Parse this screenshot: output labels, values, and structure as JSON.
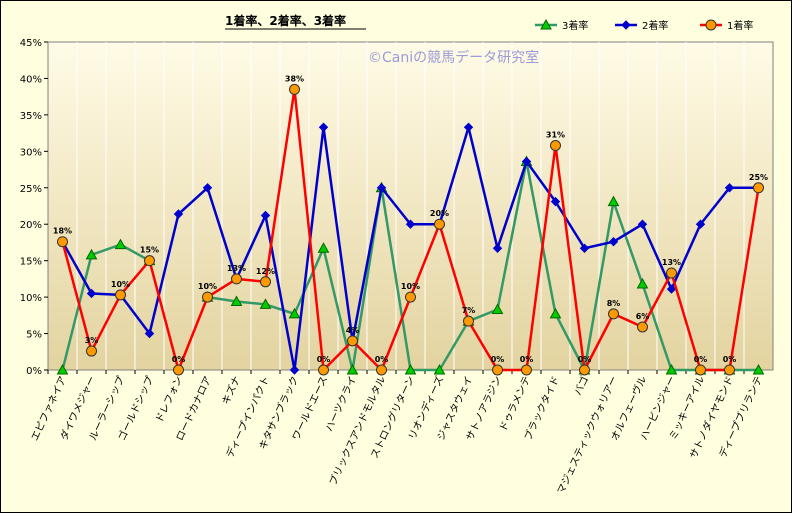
{
  "chart_data": {
    "type": "line",
    "title": "1着率、2着率、3着率",
    "watermark": "©Caniの競馬データ研究室",
    "ylim": [
      0,
      45
    ],
    "y_ticks": [
      "0%",
      "5%",
      "10%",
      "15%",
      "20%",
      "25%",
      "30%",
      "35%",
      "40%",
      "45%"
    ],
    "grid": "vertical",
    "legend_position": "top-right",
    "categories": [
      "エピファネイア",
      "ダイワメジャー",
      "ルーラーシップ",
      "ゴールドシップ",
      "ドレフォン",
      "ロードカナロア",
      "キズナ",
      "ディープインパクト",
      "キタサンブラック",
      "ワールドエース",
      "ハーツクライ",
      "ブリックスアンドモルタル",
      "ストロングリターン",
      "リオンディーズ",
      "ジャスタウェイ",
      "サトノアラジン",
      "ドゥラメンテ",
      "ブラックタイド",
      "バゴ",
      "マジェスティックウォリアー",
      "オルフェーヴル",
      "ハービンジャー",
      "ミッキーアイル",
      "サトノダイヤモンド",
      "ディープブリランテ"
    ],
    "series": [
      {
        "name": "3着率",
        "color": "#339966",
        "marker": "triangle",
        "marker_fill": "#00cc00",
        "values": [
          0,
          15.8,
          17.2,
          15,
          null,
          10,
          9.4,
          9,
          7.7,
          16.7,
          0,
          25,
          0,
          0,
          6.7,
          8.3,
          28.6,
          7.7,
          0,
          23.1,
          11.8,
          0,
          0,
          0,
          0
        ]
      },
      {
        "name": "2着率",
        "color": "#0000cc",
        "marker": "diamond",
        "marker_fill": "#0000cc",
        "values": [
          17.6,
          10.5,
          10.3,
          5,
          21.4,
          25,
          12.5,
          21.2,
          0,
          33.3,
          4,
          25,
          20,
          20,
          33.3,
          16.7,
          28.6,
          23.1,
          16.7,
          17.6,
          20,
          11.1,
          20,
          25,
          25
        ]
      },
      {
        "name": "1着率",
        "color": "#ff0000",
        "marker": "circle",
        "marker_fill": "#ff9900",
        "values": [
          17.6,
          2.6,
          10.3,
          15,
          0,
          10,
          12.5,
          12.1,
          38.5,
          0,
          4,
          0,
          10,
          20,
          6.7,
          0,
          0,
          30.8,
          0,
          7.7,
          5.9,
          13.3,
          0,
          0,
          25
        ]
      }
    ],
    "data_labels": [
      {
        "index": 0,
        "text": "18%"
      },
      {
        "index": 1,
        "text": "3%"
      },
      {
        "index": 2,
        "text": "10%"
      },
      {
        "index": 3,
        "text": "15%"
      },
      {
        "index": 4,
        "text": "0%"
      },
      {
        "index": 5,
        "text": "10%"
      },
      {
        "index": 6,
        "text": "13%"
      },
      {
        "index": 7,
        "text": "12%"
      },
      {
        "index": 8,
        "text": "38%"
      },
      {
        "index": 9,
        "text": "0%"
      },
      {
        "index": 10,
        "text": "4%"
      },
      {
        "index": 11,
        "text": "0%"
      },
      {
        "index": 12,
        "text": "10%"
      },
      {
        "index": 13,
        "text": "20%"
      },
      {
        "index": 14,
        "text": "7%"
      },
      {
        "index": 15,
        "text": "0%"
      },
      {
        "index": 16,
        "text": "0%"
      },
      {
        "index": 17,
        "text": "31%"
      },
      {
        "index": 18,
        "text": "0%"
      },
      {
        "index": 19,
        "text": "8%"
      },
      {
        "index": 20,
        "text": "6%"
      },
      {
        "index": 21,
        "text": "13%"
      },
      {
        "index": 22,
        "text": "0%"
      },
      {
        "index": 23,
        "text": "0%"
      },
      {
        "index": 24,
        "text": "25%"
      }
    ]
  }
}
